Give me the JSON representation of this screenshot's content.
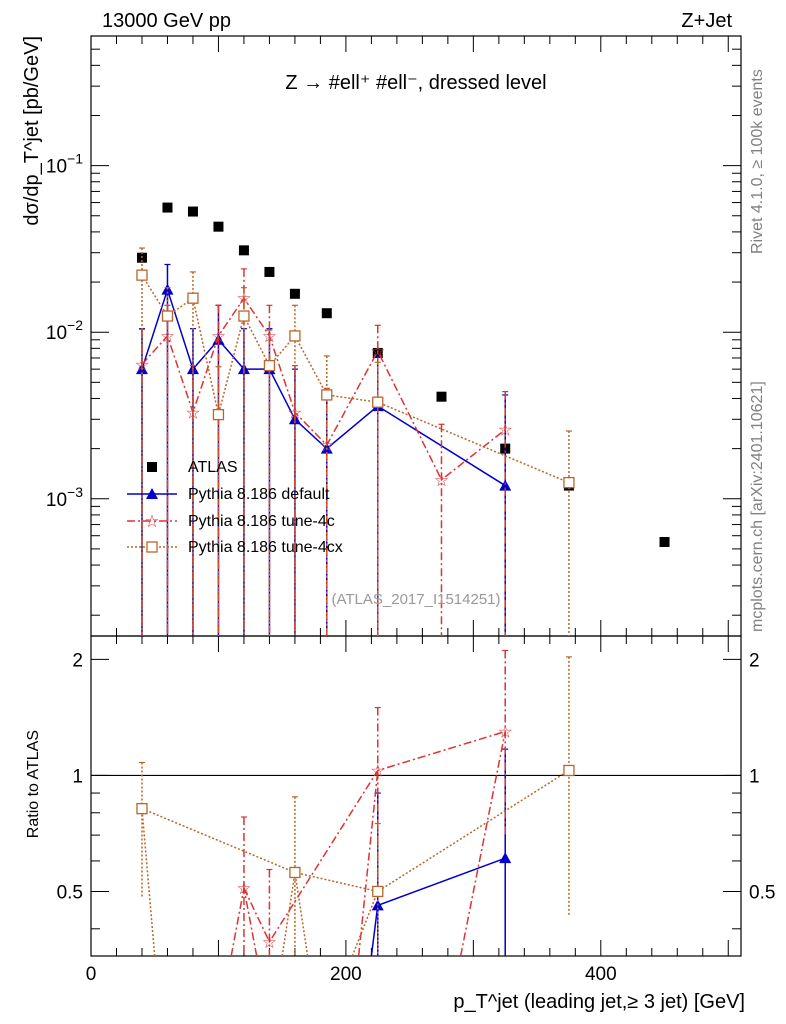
{
  "header": {
    "left": "13000 GeV pp",
    "right": "Z+Jet"
  },
  "side_labels": {
    "rivet": "Rivet 4.1.0, ≥ 100k events",
    "mcplots": "mcplots.cern.ch [arXiv:2401.10621]"
  },
  "plot_title": "Z → #ell⁺ #ell⁻, dressed level",
  "analysis_tag": "(ATLAS_2017_I1514251)",
  "upper_ylabel": "dσ/dp_T^jet [pb/GeV]",
  "lower_ylabel": "Ratio to ATLAS",
  "xlabel": "p_T^jet (leading jet,≥ 3 jet) [GeV]",
  "colors": {
    "data": "#000000",
    "default": "#0000cc",
    "tune4c": "#dd3333",
    "tune4cx": "#b8662a"
  },
  "chart_data": [
    {
      "type": "scatter",
      "panel": "main",
      "xlim": [
        0,
        510
      ],
      "ylim": [
        0.00015,
        0.6
      ],
      "yscale": "log",
      "x_ticks": [
        0,
        200,
        400
      ],
      "y_tick_labels": [
        "10^-3",
        "10^-2",
        "10^-1"
      ],
      "legend_location": "lower-left",
      "series": [
        {
          "name": "ATLAS",
          "style": "data",
          "x": [
            40,
            60,
            80,
            100,
            120,
            140,
            160,
            185,
            225,
            275,
            325,
            375,
            450
          ],
          "y": [
            0.028,
            0.056,
            0.053,
            0.043,
            0.031,
            0.023,
            0.017,
            0.013,
            0.0075,
            0.0041,
            0.002,
            0.0012,
            0.00055
          ]
        },
        {
          "name": "Pythia 8.186 default",
          "style": "default",
          "x": [
            40,
            60,
            80,
            100,
            120,
            140,
            160,
            185,
            225,
            325
          ],
          "y": [
            0.006,
            0.018,
            0.006,
            0.009,
            0.006,
            0.006,
            0.003,
            0.002,
            0.0036,
            0.0012
          ],
          "err_up": [
            0.0045,
            0.0075,
            0.0045,
            0.0055,
            0.0045,
            0.0045,
            0.003,
            0.0025,
            0.0035,
            0.003
          ],
          "err_down": [
            0.0059,
            0.0179,
            0.0059,
            0.0089,
            0.0059,
            0.0059,
            0.00298,
            0.00199,
            0.00359,
            0.00119
          ]
        },
        {
          "name": "Pythia 8.186 tune-4c",
          "style": "tune4c",
          "x": [
            40,
            60,
            80,
            100,
            120,
            140,
            160,
            185,
            225,
            275,
            325
          ],
          "y": [
            0.0064,
            0.0095,
            0.0033,
            0.0095,
            0.016,
            0.0095,
            0.0033,
            0.0021,
            0.0077,
            0.0013,
            0.0026
          ],
          "err_up": [
            0.004,
            0.005,
            0.003,
            0.005,
            0.008,
            0.005,
            0.003,
            0.0025,
            0.0033,
            0.0015,
            0.0018
          ],
          "err_down": [
            0.0063,
            0.0094,
            0.00329,
            0.0094,
            0.0159,
            0.0094,
            0.00329,
            0.00209,
            0.0076,
            0.00129,
            0.00259
          ]
        },
        {
          "name": "Pythia 8.186 tune-4cx",
          "style": "tune4cx",
          "x": [
            40,
            60,
            80,
            100,
            120,
            140,
            160,
            185,
            225,
            375
          ],
          "y": [
            0.022,
            0.0125,
            0.016,
            0.0032,
            0.0125,
            0.0063,
            0.0095,
            0.0042,
            0.0038,
            0.00125
          ],
          "err_up": [
            0.01,
            0.006,
            0.007,
            0.003,
            0.006,
            0.004,
            0.005,
            0.003,
            0.0028,
            0.0013
          ],
          "err_down": [
            0.0219,
            0.0124,
            0.0159,
            0.00319,
            0.0124,
            0.0062,
            0.0094,
            0.00419,
            0.00379,
            0.00124
          ]
        }
      ]
    },
    {
      "type": "scatter",
      "panel": "ratio",
      "xlim": [
        0,
        510
      ],
      "ylim": [
        0.34,
        2.3
      ],
      "yscale": "log",
      "y_ticks": [
        0.5,
        1,
        2
      ],
      "y_tick_labels": [
        "0.5",
        "1",
        "2"
      ],
      "reference_line": 1,
      "series": [
        {
          "name": "Pythia 8.186 default",
          "style": "default",
          "x": [
            225,
            325
          ],
          "y": [
            0.46,
            0.61
          ],
          "err_up": [
            0.44,
            0.56
          ],
          "err_down": [
            0.45,
            0.6
          ],
          "line_from": [
            [
              220,
              0.2
            ]
          ]
        },
        {
          "name": "Pythia 8.186 tune-4c",
          "style": "tune4c",
          "x": [
            120,
            140,
            225,
            325
          ],
          "y": [
            0.51,
            0.37,
            1.03,
            1.3
          ],
          "err_up": [
            0.27,
            0.2,
            0.47,
            0.81
          ],
          "err_down": [
            0.3,
            0.2,
            0.5,
            0.6
          ],
          "line_from": [
            [
              110,
              0.2
            ],
            [
              130,
              0.2
            ],
            [
              210,
              0.2
            ],
            [
              290,
              0.2
            ]
          ]
        },
        {
          "name": "Pythia 8.186 tune-4cx",
          "style": "tune4cx",
          "x": [
            40,
            160,
            225,
            375
          ],
          "y": [
            0.82,
            0.56,
            0.5,
            1.03
          ],
          "err_up": [
            0.26,
            0.32,
            0.25,
            1.0
          ],
          "err_down": [
            0.34,
            0.3,
            0.3,
            0.6
          ],
          "line_from": [
            [
              50,
              0.2
            ],
            [
              150,
              0.2
            ],
            [
              170,
              0.2
            ],
            [
              205,
              0.2
            ]
          ]
        }
      ]
    }
  ]
}
